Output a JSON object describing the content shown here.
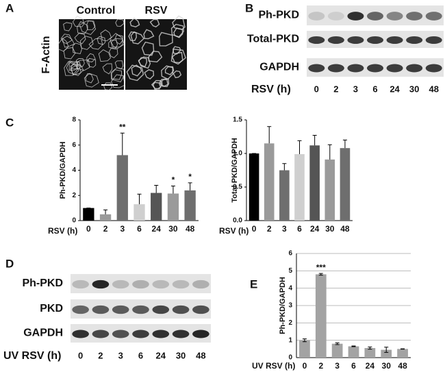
{
  "panels": {
    "A": {
      "label": "A",
      "columns": [
        "Control",
        "RSV"
      ],
      "stain": "F-Actin"
    },
    "B": {
      "label": "B",
      "rows": [
        "Ph-PKD",
        "Total-PKD",
        "GAPDH"
      ],
      "x_label": "RSV (h)",
      "lanes": [
        "0",
        "2",
        "3",
        "6",
        "24",
        "30",
        "48"
      ]
    },
    "C": {
      "label": "C"
    },
    "D": {
      "label": "D",
      "rows": [
        "Ph-PKD",
        "PKD",
        "GAPDH"
      ],
      "x_label": "UV RSV (h)",
      "lanes": [
        "0",
        "2",
        "3",
        "6",
        "24",
        "30",
        "48"
      ]
    },
    "E": {
      "label": "E"
    }
  },
  "chart_data": [
    {
      "type": "bar",
      "y_label": "Ph-PKD/GAPDH",
      "x_label": "RSV (h)",
      "categories": [
        "0",
        "2",
        "3",
        "6",
        "24",
        "30",
        "48"
      ],
      "values": [
        1.0,
        0.5,
        5.2,
        1.3,
        2.2,
        2.15,
        2.4
      ],
      "errors": [
        0,
        0.35,
        1.75,
        0.8,
        0.6,
        0.6,
        0.6
      ],
      "colors": [
        "#000000",
        "#9a9a9a",
        "#6e6e6e",
        "#cfcfcf",
        "#555555",
        "#9a9a9a",
        "#6e6e6e"
      ],
      "ylim": [
        0,
        8
      ],
      "yticks": [
        0,
        2,
        4,
        6,
        8
      ],
      "grid": false,
      "annotations": [
        {
          "label": "**",
          "x": "3"
        },
        {
          "label": "*",
          "x": "30"
        },
        {
          "label": "*",
          "x": "48"
        }
      ]
    },
    {
      "type": "bar",
      "y_label": "Total PKD/GAPDH",
      "x_label": "RSV (h)",
      "categories": [
        "0",
        "2",
        "3",
        "6",
        "24",
        "30",
        "48"
      ],
      "values": [
        1.0,
        1.15,
        0.75,
        0.99,
        1.12,
        0.91,
        1.08
      ],
      "errors": [
        0,
        0.25,
        0.1,
        0.2,
        0.15,
        0.22,
        0.12
      ],
      "colors": [
        "#000000",
        "#9a9a9a",
        "#6e6e6e",
        "#cfcfcf",
        "#555555",
        "#9a9a9a",
        "#6e6e6e"
      ],
      "ylim": [
        0,
        1.5
      ],
      "yticks": [
        {
          "value": 0,
          "label": "0.0"
        },
        {
          "value": 0.5,
          "label": "0.5"
        },
        {
          "value": 1,
          "label": "1.0"
        },
        {
          "value": 1.5,
          "label": "1.5"
        }
      ],
      "grid": false,
      "annotations": []
    },
    {
      "type": "bar",
      "y_label": "Ph-PKD/GAPDH",
      "x_label": "UV RSV (h)",
      "categories": [
        "0",
        "2",
        "3",
        "6",
        "24",
        "30",
        "48"
      ],
      "values": [
        1.0,
        4.8,
        0.8,
        0.65,
        0.55,
        0.45,
        0.5
      ],
      "errors": [
        0.08,
        0.05,
        0.05,
        0.02,
        0.06,
        0.15,
        0.01
      ],
      "colors": [
        "#a3a3a3",
        "#a3a3a3",
        "#a3a3a3",
        "#a3a3a3",
        "#a3a3a3",
        "#a3a3a3",
        "#a3a3a3"
      ],
      "ylim": [
        0,
        6
      ],
      "yticks": [
        0,
        1,
        2,
        3,
        4,
        5,
        6
      ],
      "grid": true,
      "annotations": [
        {
          "label": "***",
          "x": "2"
        }
      ]
    }
  ]
}
